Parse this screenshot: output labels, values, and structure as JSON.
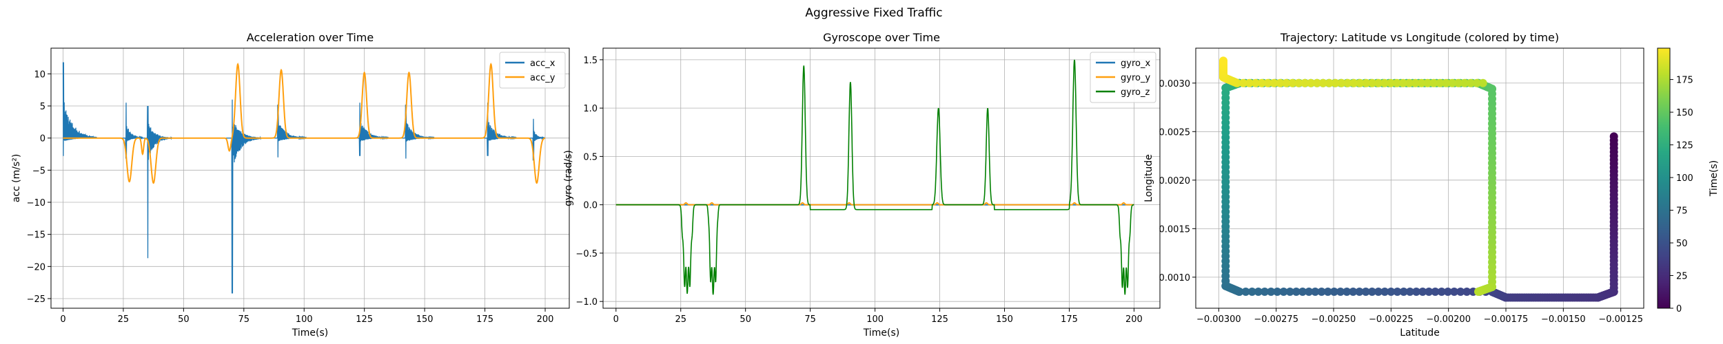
{
  "figure": {
    "suptitle": "Aggressive Fixed Traffic"
  },
  "chart_data": [
    {
      "type": "line",
      "title": "Acceleration over Time",
      "xlabel": "Time(s)",
      "ylabel": "acc (m/s²)",
      "xlim": [
        -5,
        210
      ],
      "ylim": [
        -26.5,
        14
      ],
      "xticks": [
        0,
        25,
        50,
        75,
        100,
        125,
        150,
        175,
        200
      ],
      "yticks": [
        -25,
        -20,
        -15,
        -10,
        -5,
        0,
        5,
        10
      ],
      "grid": true,
      "legend": "top-right",
      "series": [
        {
          "name": "acc_x",
          "color": "#1f77b4",
          "events": [
            {
              "t": 0,
              "peak": 11.8,
              "dip": -2.8,
              "len": 14
            },
            {
              "t": 26,
              "peak": 5.5,
              "dip": -3.2,
              "len": 7
            },
            {
              "t": 35,
              "peak": 5.0,
              "dip": -18.7,
              "len": 10
            },
            {
              "t": 70,
              "peak": 6.0,
              "dip": -24.2,
              "len": 12
            },
            {
              "t": 89,
              "peak": 5.2,
              "dip": -3.0,
              "len": 12
            },
            {
              "t": 123,
              "peak": 5.5,
              "dip": -2.8,
              "len": 12
            },
            {
              "t": 142,
              "peak": 5.2,
              "dip": -3.2,
              "len": 12
            },
            {
              "t": 176,
              "peak": 5.5,
              "dip": -2.8,
              "len": 12
            },
            {
              "t": 195,
              "peak": 3.0,
              "dip": -3.5,
              "len": 5
            }
          ]
        },
        {
          "name": "acc_y",
          "color": "#ff9f0f",
          "events": [
            {
              "t": 27.5,
              "a": -6.8,
              "w": 1.4
            },
            {
              "t": 37.5,
              "a": -7.0,
              "w": 1.4
            },
            {
              "t": 72.5,
              "a": 11.5,
              "w": 1.3
            },
            {
              "t": 90.5,
              "a": 10.6,
              "w": 1.3
            },
            {
              "t": 125,
              "a": 10.2,
              "w": 1.3
            },
            {
              "t": 143.5,
              "a": 10.2,
              "w": 1.3
            },
            {
              "t": 177.5,
              "a": 11.5,
              "w": 1.3
            },
            {
              "t": 196.5,
              "a": -7.0,
              "w": 1.4
            },
            {
              "t": 33,
              "a": -2.5,
              "w": 0.6
            },
            {
              "t": 69,
              "a": -2.0,
              "w": 0.8
            }
          ]
        }
      ]
    },
    {
      "type": "line",
      "title": "Gyroscope over Time",
      "xlabel": "Time(s)",
      "ylabel": "gyro (rad/s)",
      "xlim": [
        -5,
        210
      ],
      "ylim": [
        -1.07,
        1.62
      ],
      "xticks": [
        0,
        25,
        50,
        75,
        100,
        125,
        150,
        175,
        200
      ],
      "yticks": [
        -1.0,
        -0.5,
        0.0,
        0.5,
        1.0,
        1.5
      ],
      "yticklabels": [
        "−1.0",
        "−0.5",
        "0.0",
        "0.5",
        "1.0",
        "1.5"
      ],
      "grid": true,
      "legend": "top-right",
      "series": [
        {
          "name": "gyro_x",
          "color": "#1f77b4",
          "values": "flat at 0.0 throughout"
        },
        {
          "name": "gyro_y",
          "color": "#ff9f0f",
          "values": "flat at 0.0 throughout"
        },
        {
          "name": "gyro_z",
          "color": "#008000",
          "spikes": [
            {
              "t": 27.5,
              "a": -0.92,
              "w": 1.2
            },
            {
              "t": 37.5,
              "a": -0.93,
              "w": 1.0
            },
            {
              "t": 72.5,
              "a": 1.44,
              "w": 0.8
            },
            {
              "t": 90.5,
              "a": 1.32,
              "w": 0.8
            },
            {
              "t": 124.5,
              "a": 1.0,
              "w": 0.9
            },
            {
              "t": 143.5,
              "a": 1.0,
              "w": 0.8
            },
            {
              "t": 177,
              "a": 1.5,
              "w": 0.9
            },
            {
              "t": 196.5,
              "a": -0.93,
              "w": 1.2
            }
          ],
          "plateaus": [
            {
              "from": 75,
              "to": 122,
              "level": -0.05
            },
            {
              "from": 146,
              "to": 175,
              "level": -0.05
            }
          ]
        }
      ]
    },
    {
      "type": "scatter",
      "title": "Trajectory: Latitude vs Longitude (colored by time)",
      "xlabel": "Latitude",
      "ylabel": "Longitude",
      "xlim": [
        -0.0031,
        -0.00115
      ],
      "ylim": [
        0.00068,
        0.00336
      ],
      "xticks": [
        -0.003,
        -0.00275,
        -0.0025,
        -0.00225,
        -0.002,
        -0.00175,
        -0.0015,
        -0.00125
      ],
      "xticklabels": [
        "−0.00300",
        "−0.00275",
        "−0.00250",
        "−0.00225",
        "−0.00200",
        "−0.00175",
        "−0.00150",
        "−0.00125"
      ],
      "yticks": [
        0.001,
        0.0015,
        0.002,
        0.0025,
        0.003
      ],
      "yticklabels": [
        "0.0010",
        "0.0015",
        "0.0020",
        "0.0025",
        "0.0030"
      ],
      "grid": true,
      "colormap": "viridis",
      "colorbar": {
        "label": "Time(s)",
        "range": [
          0,
          199
        ],
        "ticks": [
          0,
          25,
          50,
          75,
          100,
          125,
          150,
          175
        ]
      },
      "path": [
        {
          "lat": -0.00128,
          "lon": 0.00245,
          "t": 0
        },
        {
          "lat": -0.00128,
          "lon": 0.00085,
          "t": 26
        },
        {
          "lat": -0.00135,
          "lon": 0.00079,
          "t": 30
        },
        {
          "lat": -0.00175,
          "lon": 0.00079,
          "t": 36
        },
        {
          "lat": -0.00181,
          "lon": 0.00085,
          "t": 40
        },
        {
          "lat": -0.00291,
          "lon": 0.00085,
          "t": 70
        },
        {
          "lat": -0.00297,
          "lon": 0.00091,
          "t": 74
        },
        {
          "lat": -0.00297,
          "lon": 0.00295,
          "t": 122
        },
        {
          "lat": -0.00291,
          "lon": 0.003,
          "t": 126
        },
        {
          "lat": -0.00187,
          "lon": 0.003,
          "t": 142
        },
        {
          "lat": -0.00181,
          "lon": 0.00294,
          "t": 146
        },
        {
          "lat": -0.00181,
          "lon": 0.0009,
          "t": 174
        },
        {
          "lat": -0.00187,
          "lon": 0.00085,
          "t": 178
        },
        {
          "lat": -0.00291,
          "lon": 0.00085,
          "t": 178.5
        },
        {
          "lat": -0.00185,
          "lon": 0.003,
          "t": 179
        },
        {
          "lat": -0.00292,
          "lon": 0.003,
          "t": 192
        },
        {
          "lat": -0.00298,
          "lon": 0.00306,
          "t": 196
        },
        {
          "lat": -0.00298,
          "lon": 0.00323,
          "t": 199
        }
      ]
    }
  ]
}
